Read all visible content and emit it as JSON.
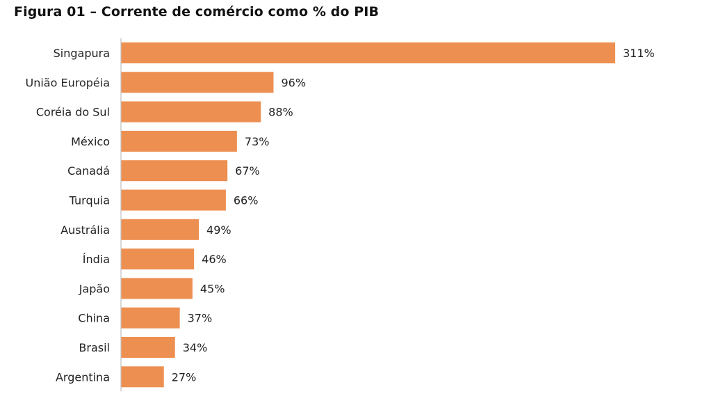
{
  "chart_data": {
    "type": "bar",
    "orientation": "horizontal",
    "title": "Figura 01 – Corrente de comércio como % do PIB",
    "categories": [
      "Singapura",
      "União Européia",
      "Coréia do Sul",
      "México",
      "Canadá",
      "Turquia",
      "Austrália",
      "Índia",
      "Japão",
      "China",
      "Brasil",
      "Argentina"
    ],
    "values": [
      311,
      96,
      88,
      73,
      67,
      66,
      49,
      46,
      45,
      37,
      34,
      27
    ],
    "value_labels": [
      "311%",
      "96%",
      "88%",
      "73%",
      "67%",
      "66%",
      "49%",
      "46%",
      "45%",
      "37%",
      "34%",
      "27%"
    ],
    "unit": "%",
    "xlim": [
      0,
      311
    ],
    "grid": false,
    "legend": "none",
    "bar_color": "#ED8F51",
    "axis_color": "#BFBFBF"
  }
}
